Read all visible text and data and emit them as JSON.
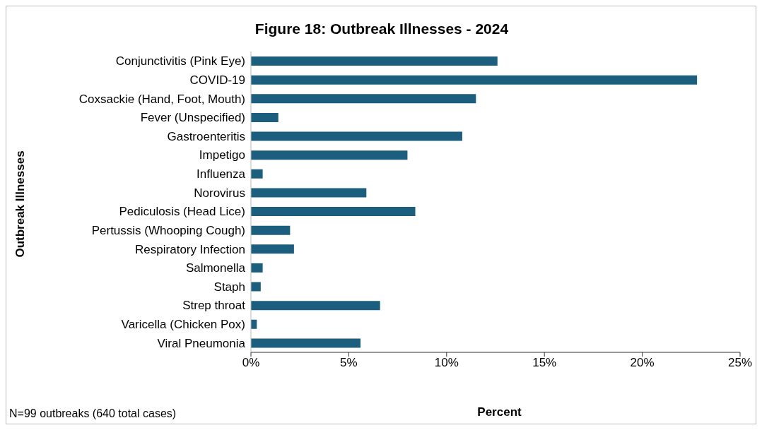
{
  "chart_data": {
    "type": "bar",
    "orientation": "horizontal",
    "title": "Figure 18: Outbreak Illnesses - 2024",
    "xlabel": "Percent",
    "ylabel": "Outbreak Illnesses",
    "categories": [
      "Conjunctivitis (Pink Eye)",
      "COVID-19",
      "Coxsackie (Hand, Foot, Mouth)",
      "Fever (Unspecified)",
      "Gastroenteritis ",
      "Impetigo",
      "Influenza",
      "Norovirus",
      "Pediculosis (Head Lice)",
      "Pertussis (Whooping Cough)",
      "Respiratory Infection",
      "Salmonella",
      "Staph",
      "Strep throat",
      "Varicella (Chicken Pox)",
      "Viral Pneumonia"
    ],
    "values": [
      12.6,
      22.8,
      11.5,
      1.4,
      10.8,
      8.0,
      0.6,
      5.9,
      8.4,
      2.0,
      2.2,
      0.6,
      0.5,
      6.6,
      0.3,
      5.6
    ],
    "color": "#1b5e7d",
    "xlim": [
      0,
      25
    ],
    "xticks": [
      {
        "value": 0,
        "label": "0%"
      },
      {
        "value": 5,
        "label": "5%"
      },
      {
        "value": 10,
        "label": "10%"
      },
      {
        "value": 15,
        "label": "15%"
      },
      {
        "value": 20,
        "label": "20%"
      },
      {
        "value": 25,
        "label": "25%"
      }
    ],
    "grid": false,
    "annotations": [
      "N=99 outbreaks (640 total cases)"
    ]
  }
}
